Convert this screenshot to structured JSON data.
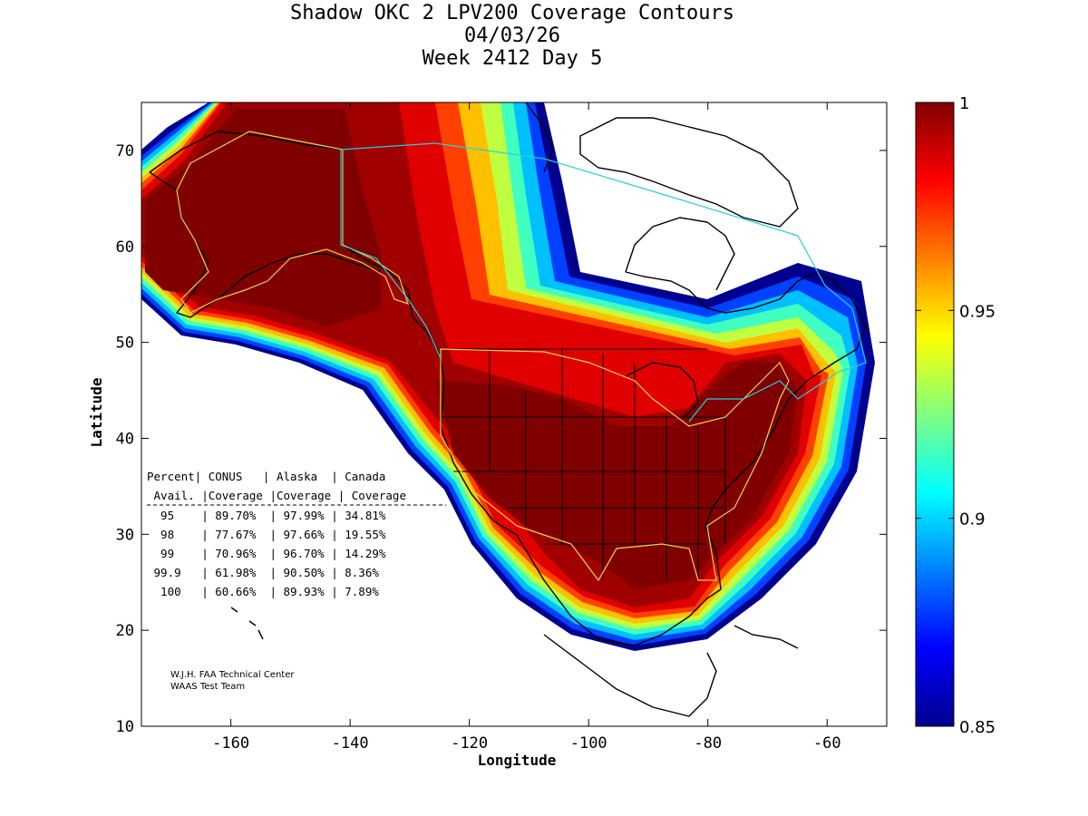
{
  "title": {
    "line1": "Shadow OKC 2 LPV200 Coverage Contours",
    "line2": "04/03/26",
    "line3": "Week 2412 Day 5"
  },
  "axes": {
    "xlabel": "Longitude",
    "ylabel": "Latitude",
    "xticks": [
      "-160",
      "-140",
      "-120",
      "-100",
      "-80",
      "-60"
    ],
    "yticks": [
      "70",
      "60",
      "50",
      "40",
      "30",
      "20",
      "10"
    ],
    "xlim": [
      -175,
      -50
    ],
    "ylim": [
      10,
      75
    ]
  },
  "colorbar": {
    "ticks": [
      "1",
      "0.95",
      "0.9",
      "0.85"
    ],
    "range": [
      0.85,
      1
    ],
    "colormap": "jet"
  },
  "table": {
    "header1": [
      "Percent",
      "CONUS",
      "Alaska",
      "Canada"
    ],
    "header2": [
      "Avail.",
      "Coverage",
      "Coverage",
      "Coverage"
    ],
    "rows": [
      [
        "95",
        "89.70%",
        "97.99%",
        "34.81%"
      ],
      [
        "98",
        "77.67%",
        "97.66%",
        "19.55%"
      ],
      [
        "99",
        "70.96%",
        "96.70%",
        "14.29%"
      ],
      [
        "99.9",
        "61.98%",
        "90.50%",
        "8.36%"
      ],
      [
        "100",
        "60.66%",
        "89.93%",
        "7.89%"
      ]
    ]
  },
  "credit": {
    "line1": "W.J.H. FAA Technical Center",
    "line2": "WAAS Test Team"
  },
  "colors": {
    "dark_red": "#800000",
    "red": "#d40000",
    "boundary_yellow": "#e8d84a",
    "boundary_cyan": "#22d0e0"
  }
}
